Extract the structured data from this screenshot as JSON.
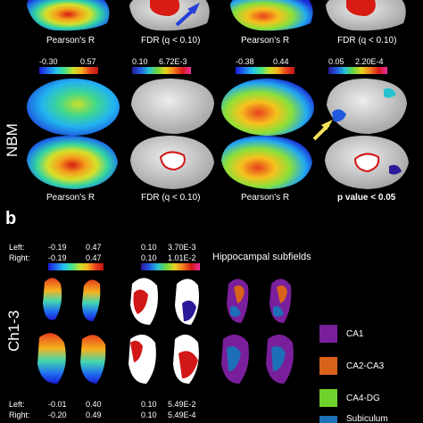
{
  "colors": {
    "ca1": "#7a1f9b",
    "ca2_ca3": "#d9621a",
    "ca4_dg": "#6fd12b",
    "subiculum": "#1d6fb8",
    "arrow_blue": "#2340d8",
    "arrow_yellow": "#f5e05a"
  },
  "panel_a_top": {
    "cap1": "Pearson's R",
    "cap2": "FDR (q < 0.10)",
    "cap3": "Pearson's R",
    "cap4": "FDR (q < 0.10)"
  },
  "nbm": {
    "row_label": "NBM",
    "scale1_min": "-0.30",
    "scale1_max": "0.57",
    "scale2_min": "0.10",
    "scale2_max": "6.72E-3",
    "scale3_min": "-0.38",
    "scale3_max": "0.44",
    "scale4_min": "0.05",
    "scale4_max": "2.20E-4",
    "cap1": "Pearson's R",
    "cap2": "FDR (q < 0.10)",
    "cap3": "Pearson's R",
    "cap4": "p value < 0.05"
  },
  "panel_b": {
    "letter": "b",
    "row_label": "Ch1-3",
    "hippocampal_title": "Hippocampal subfields",
    "top": {
      "left_label": "Left:",
      "right_label": "Right:",
      "r_left_min": "-0.19",
      "r_left_max": "0.47",
      "r_right_min": "-0.19",
      "r_right_max": "0.47",
      "f_left_min": "0.10",
      "f_left_max": "3.70E-3",
      "f_right_min": "0.10",
      "f_right_max": "1.01E-2"
    },
    "bottom": {
      "left_label": "Left:",
      "right_label": "Right:",
      "r_left_min": "-0.01",
      "r_left_max": "0.40",
      "r_right_min": "-0.20",
      "r_right_max": "0.49",
      "f_left_min": "0.10",
      "f_left_max": "5.49E-2",
      "f_right_min": "0.10",
      "f_right_max": "5.49E-4"
    }
  },
  "legend": [
    {
      "label": "CA1",
      "color": "#7a1f9b"
    },
    {
      "label": "CA2-CA3",
      "color": "#d9621a"
    },
    {
      "label": "CA4-DG",
      "color": "#6fd12b"
    },
    {
      "label": "Subiculum",
      "color": "#1d6fb8"
    }
  ]
}
